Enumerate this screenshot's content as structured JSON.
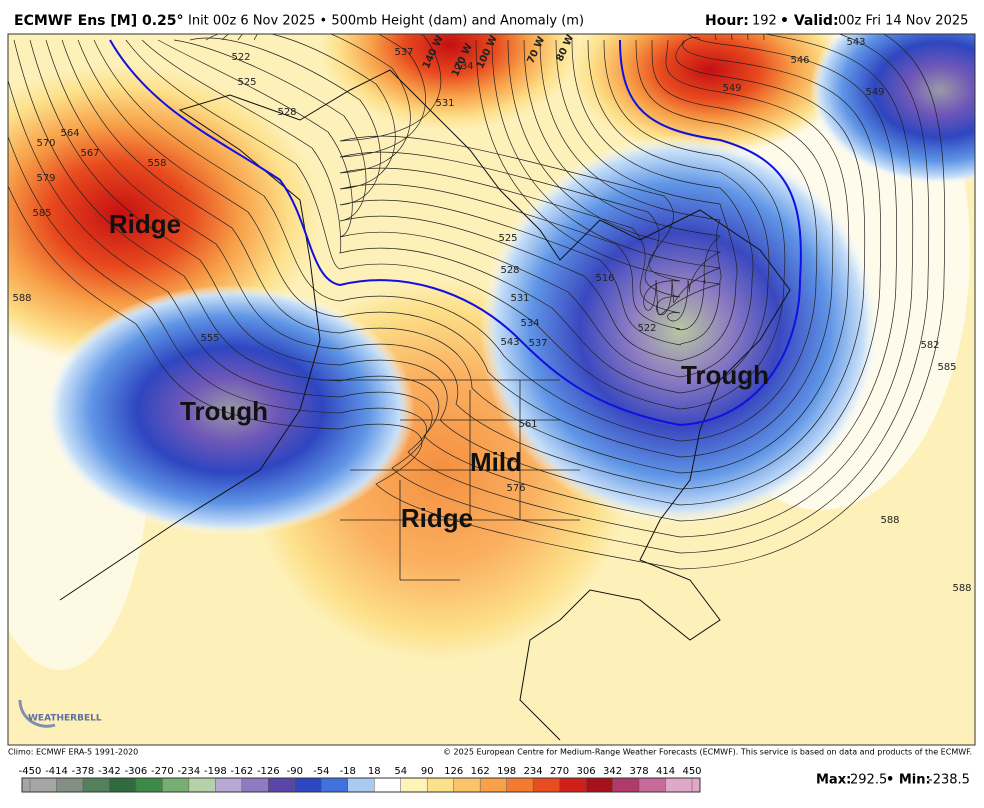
{
  "header": {
    "model": "ECMWF Ens [M] 0.25°",
    "description": "Init 00z 6 Nov 2025 • 500mb Height (dam) and Anomaly (m)",
    "hour_label": "Hour:",
    "hour": "192",
    "valid_label": "• Valid:",
    "valid": "00z Fri 14 Nov 2025"
  },
  "map": {
    "annotations": [
      "Ridge",
      "Trough",
      "Trough",
      "Mild",
      "Ridge"
    ],
    "contour_labels": [
      "522",
      "525",
      "528",
      "537",
      "531",
      "534",
      "549",
      "546",
      "543",
      "549",
      "564",
      "570",
      "567",
      "558",
      "579",
      "585",
      "588",
      "555",
      "525",
      "528",
      "531",
      "534",
      "537",
      "543",
      "516",
      "522",
      "561",
      "576",
      "582",
      "585",
      "588",
      "588"
    ],
    "longitude_labels": [
      "140 W",
      "120 W",
      "100 W",
      "70 W",
      "80 W"
    ],
    "logo": "WEATHERBELL"
  },
  "footer": {
    "climo": "Climo: ECMWF ERA-5 1991-2020",
    "copyright": "© 2025 European Centre for Medium-Range Weather Forecasts (ECMWF). This service is based on data and products of the ECMWF.",
    "max_label": "Max:",
    "max": 292.5,
    "min_label": "• Min:",
    "min": -238.5
  },
  "colorbar": {
    "ticks": [
      -450,
      -414,
      -378,
      -342,
      -306,
      -270,
      -234,
      -198,
      -162,
      -126,
      -90,
      -54,
      -18,
      18,
      54,
      90,
      126,
      162,
      198,
      234,
      270,
      306,
      342,
      378,
      414,
      450
    ],
    "colors": [
      "#a6a6a6",
      "#848f84",
      "#56805c",
      "#2f6b3c",
      "#3c8a46",
      "#79ad73",
      "#b4d1a9",
      "#b7a9d4",
      "#8f7bc2",
      "#5a45a8",
      "#2e46c0",
      "#3f72dc",
      "#a9cbf2",
      "#ffffff",
      "#fff3b8",
      "#fde08a",
      "#fcc46a",
      "#f9a04a",
      "#f47a30",
      "#e84d20",
      "#d0201a",
      "#a8101a",
      "#b03a6a",
      "#c86a9a",
      "#e0a8c8"
    ]
  }
}
